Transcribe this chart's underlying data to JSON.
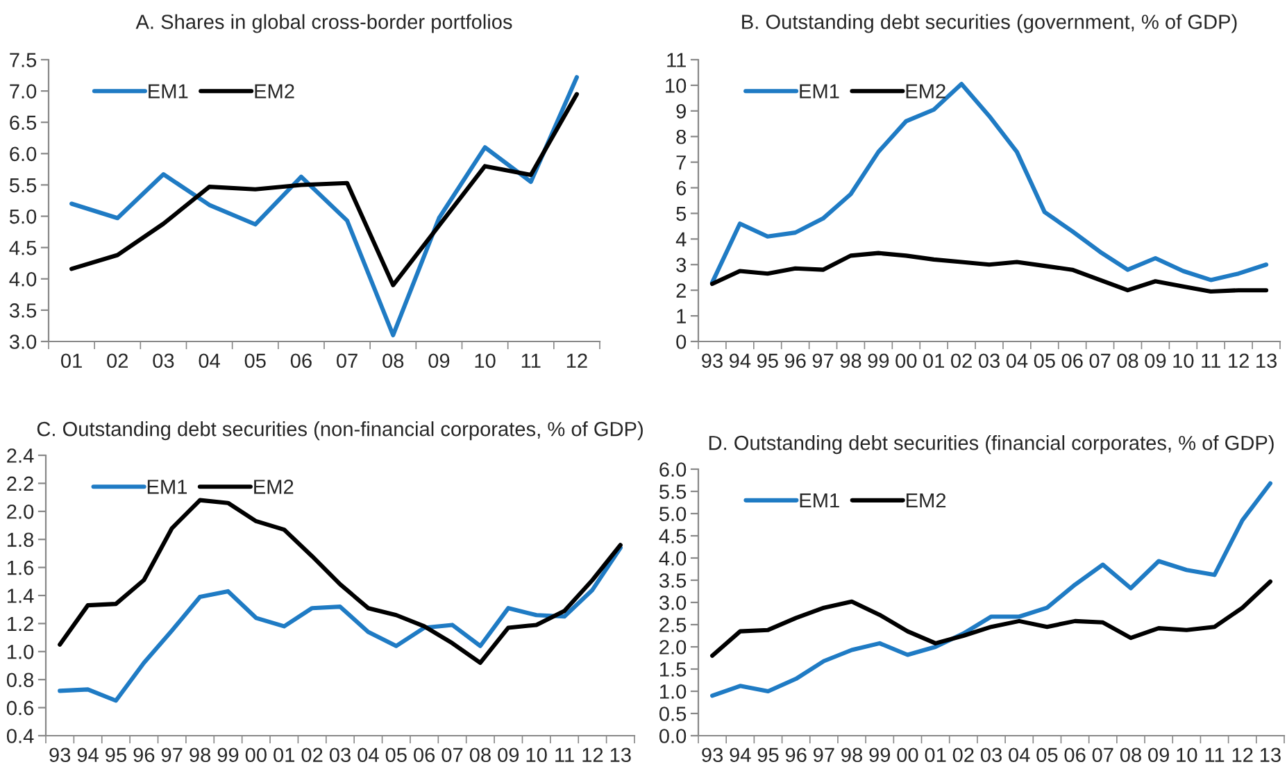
{
  "chart_data": [
    {
      "type": "line",
      "title": "A. Shares in global cross-border portfolios",
      "categories": [
        "01",
        "02",
        "03",
        "04",
        "05",
        "06",
        "07",
        "08",
        "09",
        "10",
        "11",
        "12"
      ],
      "ylim": [
        3.0,
        7.5
      ],
      "yticks": [
        {
          "value": 3.0,
          "label": "3.0"
        },
        {
          "value": 3.5,
          "label": "3.5"
        },
        {
          "value": 4.0,
          "label": "4.0"
        },
        {
          "value": 4.5,
          "label": "4.5"
        },
        {
          "value": 5.0,
          "label": "5.0"
        },
        {
          "value": 5.5,
          "label": "5.5"
        },
        {
          "value": 6.0,
          "label": "6.0"
        },
        {
          "value": 6.5,
          "label": "6.5"
        },
        {
          "value": 7.0,
          "label": "7.0"
        },
        {
          "value": 7.5,
          "label": "7.5"
        }
      ],
      "grid": false,
      "legend": "top left",
      "line_style": "solid",
      "series": [
        {
          "name": "EM1",
          "color": "#1f7bc4",
          "values": [
            5.2,
            4.97,
            5.67,
            5.18,
            4.87,
            5.63,
            4.93,
            3.1,
            4.97,
            6.1,
            5.55,
            7.22
          ]
        },
        {
          "name": "EM2",
          "color": "#000000",
          "values": [
            4.16,
            4.38,
            4.88,
            5.47,
            5.43,
            5.5,
            5.53,
            3.9,
            4.85,
            5.8,
            5.66,
            6.95
          ]
        }
      ]
    },
    {
      "type": "line",
      "title": "B. Outstanding debt securities (government, % of GDP)",
      "categories": [
        "93",
        "94",
        "95",
        "96",
        "97",
        "98",
        "99",
        "00",
        "01",
        "02",
        "03",
        "04",
        "05",
        "06",
        "07",
        "08",
        "09",
        "10",
        "11",
        "12",
        "13"
      ],
      "ylim": [
        0,
        11
      ],
      "yticks": [
        0,
        1,
        2,
        3,
        4,
        5,
        6,
        7,
        8,
        9,
        10,
        11
      ],
      "grid": false,
      "legend": "top left",
      "line_style": "solid",
      "series": [
        {
          "name": "EM1",
          "color": "#1f7bc4",
          "values": [
            2.3,
            4.6,
            4.1,
            4.25,
            4.8,
            5.75,
            7.4,
            8.6,
            9.05,
            10.05,
            8.8,
            7.4,
            5.05,
            4.3,
            3.5,
            2.8,
            3.25,
            2.75,
            2.4,
            2.65,
            3.0
          ]
        },
        {
          "name": "EM2",
          "color": "#000000",
          "values": [
            2.25,
            2.75,
            2.65,
            2.85,
            2.8,
            3.35,
            3.45,
            3.35,
            3.2,
            3.1,
            3.0,
            3.1,
            2.95,
            2.8,
            2.4,
            2.0,
            2.35,
            2.15,
            1.95,
            2.0,
            2.0
          ]
        }
      ]
    },
    {
      "type": "line",
      "title": "C. Outstanding debt securities (non-financial corporates, % of GDP)",
      "categories": [
        "93",
        "94",
        "95",
        "96",
        "97",
        "98",
        "99",
        "00",
        "01",
        "02",
        "03",
        "04",
        "05",
        "06",
        "07",
        "08",
        "09",
        "10",
        "11",
        "12",
        "13"
      ],
      "ylim": [
        0.4,
        2.4
      ],
      "yticks": [
        {
          "value": 0.4,
          "label": "0.4"
        },
        {
          "value": 0.6,
          "label": "0.6"
        },
        {
          "value": 0.8,
          "label": "0.8"
        },
        {
          "value": 1.0,
          "label": "1.0"
        },
        {
          "value": 1.2,
          "label": "1.2"
        },
        {
          "value": 1.4,
          "label": "1.4"
        },
        {
          "value": 1.6,
          "label": "1.6"
        },
        {
          "value": 1.8,
          "label": "1.8"
        },
        {
          "value": 2.0,
          "label": "2.0"
        },
        {
          "value": 2.2,
          "label": "2.2"
        },
        {
          "value": 2.4,
          "label": "2.4"
        }
      ],
      "grid": false,
      "legend": "top left",
      "line_style": "solid",
      "series": [
        {
          "name": "EM1",
          "color": "#1f7bc4",
          "values": [
            0.72,
            0.73,
            0.65,
            0.92,
            1.15,
            1.39,
            1.43,
            1.24,
            1.18,
            1.31,
            1.32,
            1.14,
            1.04,
            1.17,
            1.19,
            1.04,
            1.31,
            1.26,
            1.25,
            1.44,
            1.74
          ]
        },
        {
          "name": "EM2",
          "color": "#000000",
          "values": [
            1.05,
            1.33,
            1.34,
            1.51,
            1.88,
            2.08,
            2.06,
            1.93,
            1.87,
            1.68,
            1.48,
            1.31,
            1.26,
            1.18,
            1.06,
            0.92,
            1.17,
            1.19,
            1.29,
            1.51,
            1.76
          ]
        }
      ]
    },
    {
      "type": "line",
      "title": "D. Outstanding debt securities (financial corporates, % of GDP)",
      "categories": [
        "93",
        "94",
        "95",
        "96",
        "97",
        "98",
        "99",
        "00",
        "01",
        "02",
        "03",
        "04",
        "05",
        "06",
        "07",
        "08",
        "09",
        "10",
        "11",
        "12",
        "13"
      ],
      "ylim": [
        0.0,
        6.0
      ],
      "yticks": [
        {
          "value": 0.0,
          "label": "0.0"
        },
        {
          "value": 0.5,
          "label": "0.5"
        },
        {
          "value": 1.0,
          "label": "1.0"
        },
        {
          "value": 1.5,
          "label": "1.5"
        },
        {
          "value": 2.0,
          "label": "2.0"
        },
        {
          "value": 2.5,
          "label": "2.5"
        },
        {
          "value": 3.0,
          "label": "3.0"
        },
        {
          "value": 3.5,
          "label": "3.5"
        },
        {
          "value": 4.0,
          "label": "4.0"
        },
        {
          "value": 4.5,
          "label": "4.5"
        },
        {
          "value": 5.0,
          "label": "5.0"
        },
        {
          "value": 5.5,
          "label": "5.5"
        },
        {
          "value": 6.0,
          "label": "6.0"
        }
      ],
      "grid": false,
      "legend": "top left",
      "line_style": "solid",
      "series": [
        {
          "name": "EM1",
          "color": "#1f7bc4",
          "values": [
            0.9,
            1.12,
            1.0,
            1.28,
            1.68,
            1.93,
            2.08,
            1.82,
            2.0,
            2.3,
            2.68,
            2.68,
            2.88,
            3.4,
            3.85,
            3.32,
            3.93,
            3.73,
            3.62,
            4.85,
            5.68
          ]
        },
        {
          "name": "EM2",
          "color": "#000000",
          "values": [
            1.8,
            2.35,
            2.38,
            2.65,
            2.88,
            3.02,
            2.72,
            2.35,
            2.08,
            2.25,
            2.45,
            2.58,
            2.45,
            2.58,
            2.55,
            2.2,
            2.42,
            2.38,
            2.45,
            2.88,
            3.47
          ]
        }
      ]
    }
  ]
}
